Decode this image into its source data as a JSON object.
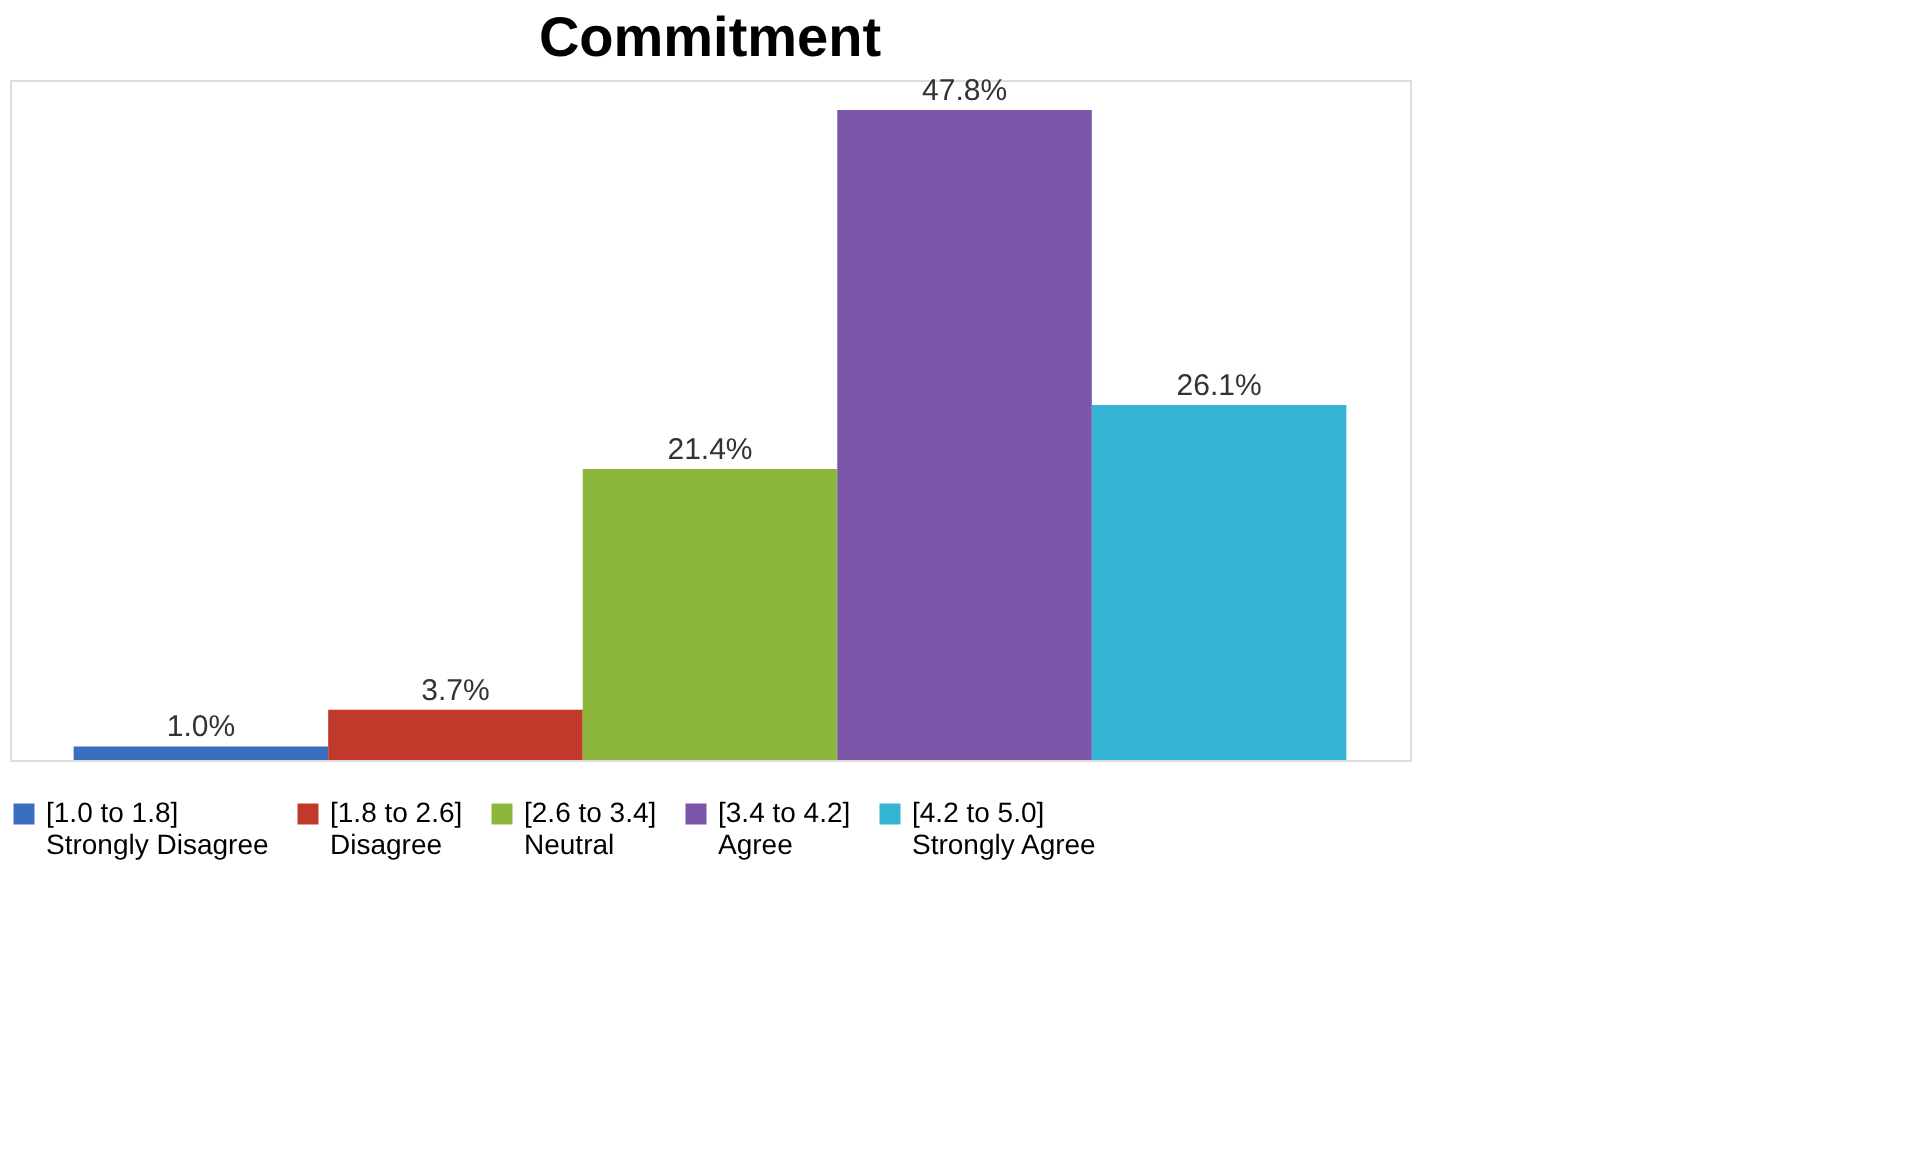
{
  "chart_data": {
    "type": "bar",
    "title": "Commitment",
    "categories": [
      null
    ],
    "legend": "bottom",
    "grid": false,
    "series": [
      {
        "name": "[1.0 to 1.8]\nStrongly Disagree",
        "color": "#3a6fbf",
        "values": [
          1.0
        ],
        "value_labels": [
          "1.0%"
        ]
      },
      {
        "name": "[1.8 to 2.6]\nDisagree",
        "color": "#c0392b",
        "values": [
          3.7
        ],
        "value_labels": [
          "3.7%"
        ]
      },
      {
        "name": "[2.6 to 3.4]\nNeutral",
        "color": "#8db63c",
        "values": [
          21.4
        ],
        "value_labels": [
          "21.4%"
        ]
      },
      {
        "name": "[3.4 to 4.2]\nAgree",
        "color": "#7b55a8",
        "values": [
          47.8
        ],
        "value_labels": [
          "47.8%"
        ]
      },
      {
        "name": "[4.2 to 5.0]\nStrongly Agree",
        "color": "#35b4d4",
        "values": [
          26.1
        ],
        "value_labels": [
          "26.1%"
        ]
      }
    ]
  }
}
